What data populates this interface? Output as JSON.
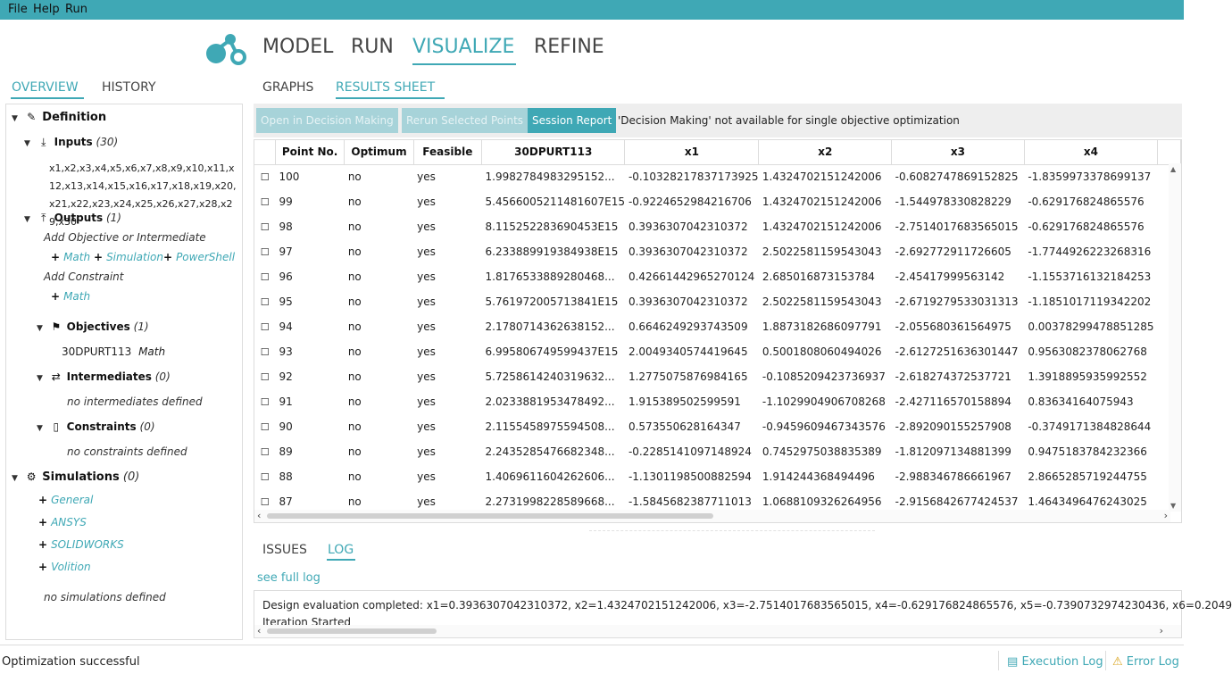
{
  "menu": {
    "file": "File",
    "help": "Help",
    "run": "Run"
  },
  "colors": {
    "accent": "#3fa8b5",
    "accent_disabled": "#a7d3d9"
  },
  "main_tabs": {
    "model": "MODEL",
    "run": "RUN",
    "visualize": "VISUALIZE",
    "refine": "REFINE",
    "active": "VISUALIZE"
  },
  "left_tabs": {
    "overview": "OVERVIEW",
    "history": "HISTORY",
    "active": "OVERVIEW"
  },
  "tree": {
    "definition": "Definition",
    "inputs": {
      "label": "Inputs",
      "count": "(30)",
      "list": "x1,x2,x3,x4,x5,x6,x7,x8,x9,x10,x11,x12,x13,x14,x15,x16,x17,x18,x19,x20,x21,x22,x23,x24,x25,x26,x27,x28,x29,x30"
    },
    "outputs": {
      "label": "Outputs",
      "count": "(1)"
    },
    "add_objective": "Add Objective or Intermediate",
    "math": "Math",
    "simulation": "Simulation",
    "powershell": "PowerShell",
    "add_constraint": "Add Constraint",
    "math2": "Math",
    "objectives": {
      "label": "Objectives",
      "count": "(1)",
      "item_name": "30DPURT113",
      "item_type": "Math"
    },
    "intermediates": {
      "label": "Intermediates",
      "count": "(0)",
      "empty": "no intermediates defined"
    },
    "constraints": {
      "label": "Constraints",
      "count": "(0)",
      "empty": "no constraints defined"
    },
    "simulations": {
      "label": "Simulations",
      "count": "(0)",
      "general": "General",
      "ansys": "ANSYS",
      "solidworks": "SOLIDWORKS",
      "volition": "Volition",
      "empty": "no simulations defined"
    }
  },
  "sub_tabs": {
    "graphs": "GRAPHS",
    "results_sheet": "RESULTS SHEET",
    "active": "RESULTS SHEET"
  },
  "toolbar": {
    "open_dm": "Open in Decision Making",
    "rerun": "Rerun Selected Points",
    "session_report": "Session Report",
    "message": "'Decision Making' not available for single objective optimization"
  },
  "table": {
    "columns": [
      "Point No.",
      "Optimum",
      "Feasible",
      "30DPURT113",
      "x1",
      "x2",
      "x3",
      "x4"
    ],
    "checkbox_glyph": "☐",
    "rows": [
      [
        "100",
        "no",
        "yes",
        "1.9982784983295152...",
        "-0.10328217837173925",
        "1.4324702151242006",
        "-0.6082747869152825",
        "-1.8359973378699137"
      ],
      [
        "99",
        "no",
        "yes",
        "5.456600521148160​7E15",
        "-0.9224652984216706",
        "1.4324702151242006",
        "-1.544978330828229",
        "-0.629176824865576"
      ],
      [
        "98",
        "no",
        "yes",
        "8.115252283690453E15",
        "0.3936307042310372",
        "1.4324702151242006",
        "-2.7514017683565015",
        "-0.629176824865576"
      ],
      [
        "97",
        "no",
        "yes",
        "6.233889919384938E15",
        "0.3936307042310372",
        "2.5022581159543043",
        "-2.692772911726605",
        "-1.7744926223268316"
      ],
      [
        "96",
        "no",
        "yes",
        "1.8176533889280468...",
        "0.42661442965270124",
        "2.685016873153784",
        "-2.45417999563142",
        "-1.1553716132184253"
      ],
      [
        "95",
        "no",
        "yes",
        "5.761972005713841E15",
        "0.3936307042310372",
        "2.5022581159543043",
        "-2.6719279533031313",
        "-1.1851017119342202"
      ],
      [
        "94",
        "no",
        "yes",
        "2.1780714362638152...",
        "0.6646249293743509",
        "1.8873182686097791",
        "-2.055680361564975",
        "0.00378299478851285"
      ],
      [
        "93",
        "no",
        "yes",
        "6.995806749599437E15",
        "2.0049340574419645",
        "0.5001808060494026",
        "-2.6127251636301447",
        "0.9563082378062768"
      ],
      [
        "92",
        "no",
        "yes",
        "5.7258614240319632...",
        "1.2775075876984165",
        "-0.1085209423736937",
        "-2.618274372537721",
        "1.3918895935992552"
      ],
      [
        "91",
        "no",
        "yes",
        "2.0233881953478492...",
        "1.915389502599591",
        "-1.1029904906708268",
        "-2.427116570158894",
        "0.83634164075943"
      ],
      [
        "90",
        "no",
        "yes",
        "2.1155458975594508...",
        "0.573550628164347",
        "-0.9459609467343576",
        "-2.892090155257908",
        "-0.3749171384828644"
      ],
      [
        "89",
        "no",
        "yes",
        "2.2435285476682348...",
        "-0.2285141097148924",
        "0.7452975038835389",
        "-1.812097134881399",
        "0.9475183784232366"
      ],
      [
        "88",
        "no",
        "yes",
        "1.4069611604262606...",
        "-1.1301198500882594",
        "1.914244368494496",
        "-2.988346786661967",
        "2.8665285719244755"
      ],
      [
        "87",
        "no",
        "yes",
        "2.2731998228589668...",
        "-1.5845682387711013",
        "1.0688109326264956",
        "-2.9156842677424537",
        "1.4643496476243025"
      ]
    ]
  },
  "bottom_tabs": {
    "issues": "ISSUES",
    "log": "LOG",
    "active": "LOG"
  },
  "log": {
    "see_full": "see full log",
    "line1": "Design evaluation completed: x1=0.3936307042310372, x2=1.4324702151242006, x3=-2.7514017683565015, x4=-0.629176824865576, x5=-0.7390732974230436, x6=0.2049",
    "line2": "Iteration Started"
  },
  "status": {
    "text": "Optimization successful",
    "execution_log": "Execution Log",
    "error_log": "Error Log"
  }
}
